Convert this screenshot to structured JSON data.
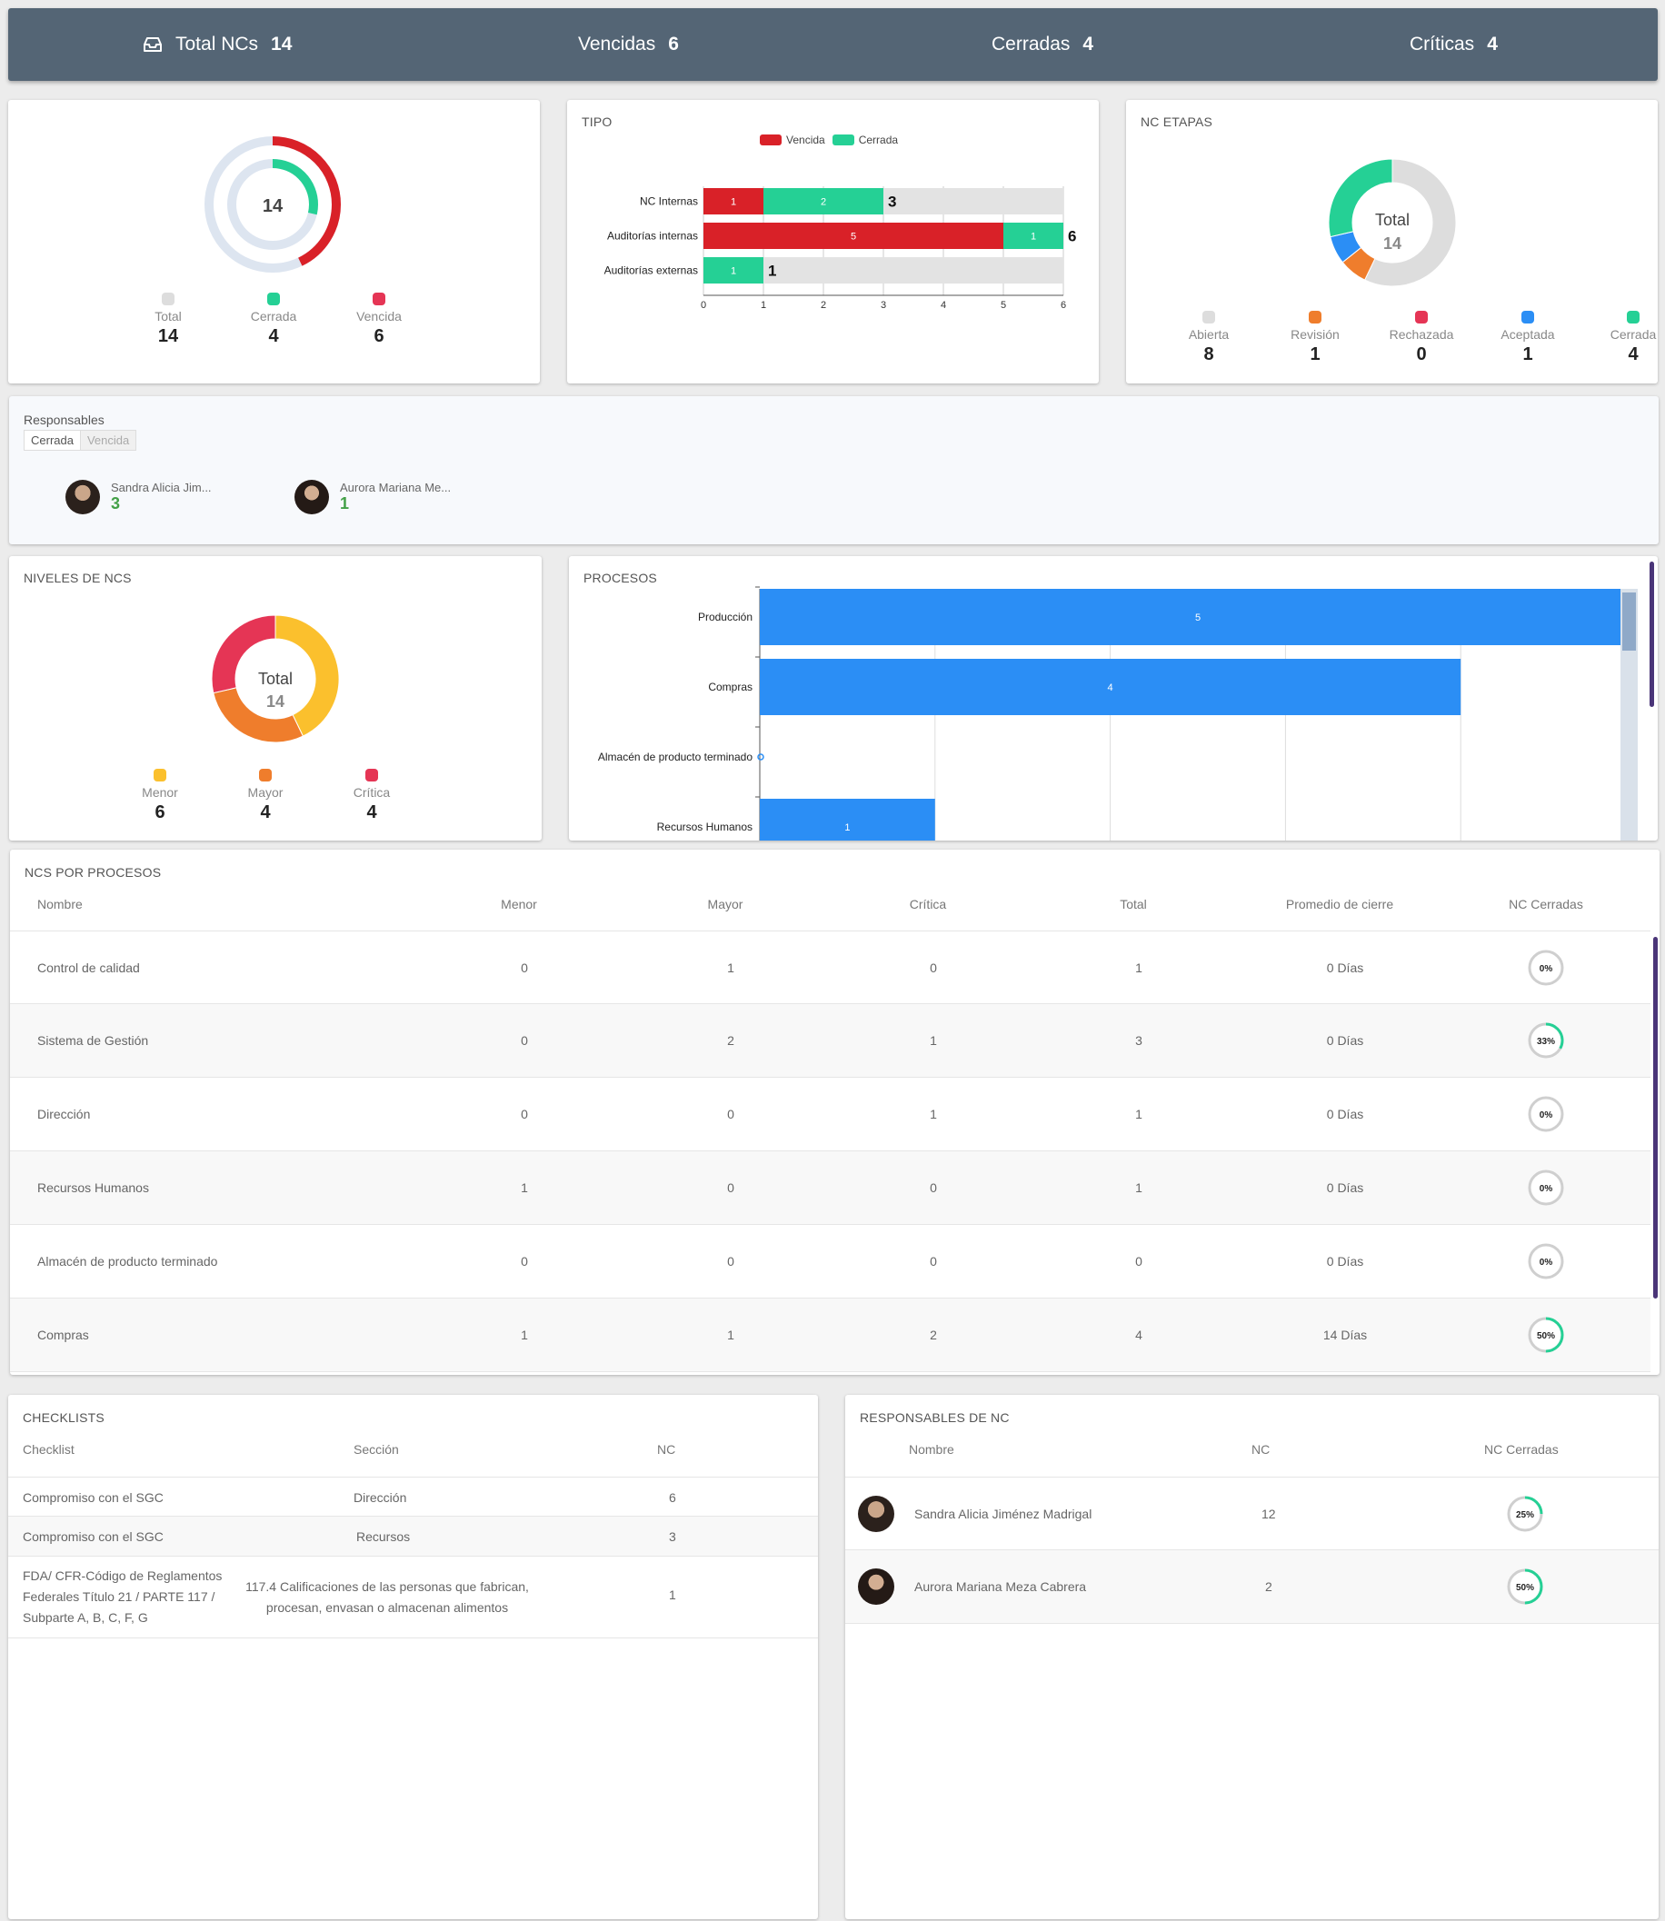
{
  "topbar": {
    "items": [
      {
        "label": "Total NCs",
        "value": "14"
      },
      {
        "label": "Vencidas",
        "value": "6"
      },
      {
        "label": "Cerradas",
        "value": "4"
      },
      {
        "label": "Críticas",
        "value": "4"
      }
    ]
  },
  "summary_card": {
    "center": "14",
    "legend": [
      {
        "label": "Total",
        "value": "14",
        "color": "#dddddd"
      },
      {
        "label": "Cerrada",
        "value": "4",
        "color": "#25d095"
      },
      {
        "label": "Vencida",
        "value": "6",
        "color": "#e53555"
      }
    ]
  },
  "tipo_card": {
    "title": "TIPO",
    "legend": [
      {
        "label": "Vencida",
        "color": "#d92128"
      },
      {
        "label": "Cerrada",
        "color": "#25d095"
      }
    ]
  },
  "etapas_card": {
    "title": "NC ETAPAS",
    "center_label": "Total",
    "center_value": "14",
    "legend": [
      {
        "label": "Abierta",
        "value": "8",
        "color": "#dddddd"
      },
      {
        "label": "Revisión",
        "value": "1",
        "color": "#ef7d2c"
      },
      {
        "label": "Rechazada",
        "value": "0",
        "color": "#e53555"
      },
      {
        "label": "Aceptada",
        "value": "1",
        "color": "#2b8ef5"
      },
      {
        "label": "Cerrada",
        "value": "4",
        "color": "#25d095"
      }
    ]
  },
  "responsables": {
    "title": "Responsables",
    "tabs": [
      "Cerrada",
      "Vencida"
    ],
    "people": [
      {
        "name": "Sandra Alicia Jim...",
        "value": "3"
      },
      {
        "name": "Aurora Mariana Me...",
        "value": "1"
      }
    ]
  },
  "niveles_card": {
    "title": "NIVELES DE NCS",
    "center_label": "Total",
    "center_value": "14",
    "legend": [
      {
        "label": "Menor",
        "value": "6",
        "color": "#fbc02d"
      },
      {
        "label": "Mayor",
        "value": "4",
        "color": "#ef7d2c"
      },
      {
        "label": "Crítica",
        "value": "4",
        "color": "#e53555"
      }
    ]
  },
  "procesos_card": {
    "title": "PROCESOS"
  },
  "ncs_procesos": {
    "title": "NCS POR PROCESOS",
    "headers": [
      "Nombre",
      "Menor",
      "Mayor",
      "Crítica",
      "Total",
      "Promedio de cierre",
      "NC Cerradas"
    ],
    "rows": [
      {
        "name": "Control de calidad",
        "menor": "0",
        "mayor": "1",
        "critica": "0",
        "total": "1",
        "promedio": "0 Días",
        "pct_label": "0%",
        "pct": 0
      },
      {
        "name": "Sistema de Gestión",
        "menor": "0",
        "mayor": "2",
        "critica": "1",
        "total": "3",
        "promedio": "0 Días",
        "pct_label": "33%",
        "pct": 33
      },
      {
        "name": "Dirección",
        "menor": "0",
        "mayor": "0",
        "critica": "1",
        "total": "1",
        "promedio": "0 Días",
        "pct_label": "0%",
        "pct": 0
      },
      {
        "name": "Recursos Humanos",
        "menor": "1",
        "mayor": "0",
        "critica": "0",
        "total": "1",
        "promedio": "0 Días",
        "pct_label": "0%",
        "pct": 0
      },
      {
        "name": "Almacén de producto terminado",
        "menor": "0",
        "mayor": "0",
        "critica": "0",
        "total": "0",
        "promedio": "0 Días",
        "pct_label": "0%",
        "pct": 0
      },
      {
        "name": "Compras",
        "menor": "1",
        "mayor": "1",
        "critica": "2",
        "total": "4",
        "promedio": "14 Días",
        "pct_label": "50%",
        "pct": 50
      }
    ]
  },
  "checklists": {
    "title": "CHECKLISTS",
    "headers": [
      "Checklist",
      "Sección",
      "NC"
    ],
    "rows": [
      {
        "checklist": "Compromiso con el SGC",
        "seccion": "Dirección",
        "nc": "6"
      },
      {
        "checklist": "Compromiso con el SGC",
        "seccion": "Recursos",
        "nc": "3"
      },
      {
        "checklist": "FDA/ CFR-Código de Reglamentos Federales Título 21 / PARTE 117 / Subparte A, B, C, F, G",
        "seccion": "117.4 Calificaciones de las personas que fabrican, procesan, envasan o almacenan alimentos",
        "nc": "1"
      }
    ]
  },
  "responsables_nc": {
    "title": "RESPONSABLES DE NC",
    "headers": [
      "Nombre",
      "NC",
      "NC Cerradas"
    ],
    "rows": [
      {
        "name": "Sandra Alicia Jiménez Madrigal",
        "nc": "12",
        "pct_label": "25%",
        "pct": 25
      },
      {
        "name": "Aurora Mariana Meza Cabrera",
        "nc": "2",
        "pct_label": "50%",
        "pct": 50
      }
    ]
  },
  "chart_data": [
    {
      "type": "bar",
      "title": "TIPO",
      "orientation": "horizontal",
      "stacked": true,
      "categories": [
        "NC Internas",
        "Auditorías internas",
        "Auditorías externas"
      ],
      "series": [
        {
          "name": "Vencida",
          "values": [
            1,
            5,
            0
          ],
          "color": "#d92128"
        },
        {
          "name": "Cerrada",
          "values": [
            2,
            1,
            1
          ],
          "color": "#25d095"
        }
      ],
      "totals": [
        3,
        6,
        1
      ],
      "xlim": [
        0,
        6
      ],
      "xticks": [
        "0",
        "1",
        "2",
        "3",
        "4",
        "5",
        "6"
      ],
      "legend": "top"
    },
    {
      "type": "bar",
      "title": "PROCESOS",
      "orientation": "horizontal",
      "categories": [
        "Producción",
        "Compras",
        "Almacén de producto terminado",
        "Recursos Humanos"
      ],
      "values": [
        5,
        4,
        0,
        1
      ],
      "color": "#2b8ef5",
      "xlim": [
        0,
        5
      ],
      "grid": true
    },
    {
      "type": "pie",
      "title": "NC ETAPAS",
      "donut": true,
      "labels": [
        "Abierta",
        "Revisión",
        "Rechazada",
        "Aceptada",
        "Cerrada"
      ],
      "values": [
        8,
        1,
        0,
        1,
        4
      ]
    },
    {
      "type": "pie",
      "title": "NIVELES DE NCS",
      "donut": true,
      "labels": [
        "Menor",
        "Mayor",
        "Crítica"
      ],
      "values": [
        6,
        4,
        4
      ]
    }
  ]
}
